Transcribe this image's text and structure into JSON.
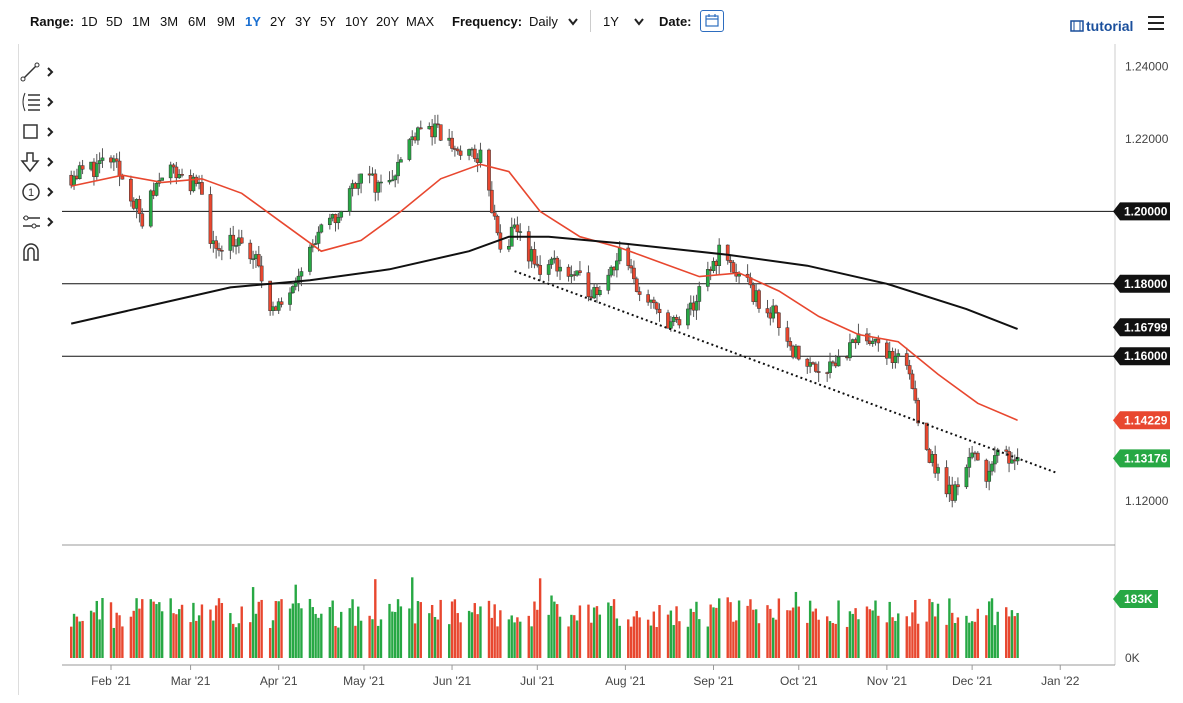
{
  "toolbar": {
    "range_label": "Range:",
    "ranges": [
      "1D",
      "5D",
      "1M",
      "3M",
      "6M",
      "9M",
      "1Y",
      "2Y",
      "3Y",
      "5Y",
      "10Y",
      "20Y",
      "MAX"
    ],
    "active_range": "1Y",
    "frequency_label": "Frequency:",
    "frequency_value": "Daily",
    "period_value": "1Y",
    "date_label": "Date:",
    "tutorial_label": "tutorial"
  },
  "chart_data": {
    "type": "candlestick",
    "x_tick_labels": [
      "Feb '21",
      "Mar '21",
      "Apr '21",
      "May '21",
      "Jun '21",
      "Jul '21",
      "Aug '21",
      "Sep '21",
      "Oct '21",
      "Nov '21",
      "Dec '21",
      "Jan '22"
    ],
    "y_tick_labels": [
      "1.24000",
      "1.22000",
      "1.20000",
      "1.18000",
      "1.16000",
      "1.12000"
    ],
    "ylim": [
      1.1153,
      1.2435
    ],
    "price_path": [
      [
        "2021-01-18",
        1.21
      ],
      [
        "2021-02-01",
        1.214
      ],
      [
        "2021-02-08",
        1.205
      ],
      [
        "2021-02-12",
        1.197
      ],
      [
        "2021-02-19",
        1.212
      ],
      [
        "2021-02-26",
        1.21
      ],
      [
        "2021-03-05",
        1.205
      ],
      [
        "2021-03-09",
        1.19
      ],
      [
        "2021-03-15",
        1.193
      ],
      [
        "2021-03-24",
        1.186
      ],
      [
        "2021-03-31",
        1.171
      ],
      [
        "2021-04-07",
        1.183
      ],
      [
        "2021-04-15",
        1.193
      ],
      [
        "2021-04-22",
        1.199
      ],
      [
        "2021-04-29",
        1.21
      ],
      [
        "2021-05-07",
        1.207
      ],
      [
        "2021-05-14",
        1.214
      ],
      [
        "2021-05-20",
        1.224
      ],
      [
        "2021-05-28",
        1.221
      ],
      [
        "2021-06-04",
        1.216
      ],
      [
        "2021-06-11",
        1.215
      ],
      [
        "2021-06-15",
        1.201
      ],
      [
        "2021-06-18",
        1.189
      ],
      [
        "2021-06-24",
        1.195
      ],
      [
        "2021-07-01",
        1.184
      ],
      [
        "2021-07-07",
        1.186
      ],
      [
        "2021-07-15",
        1.181
      ],
      [
        "2021-07-21",
        1.178
      ],
      [
        "2021-07-30",
        1.188
      ],
      [
        "2021-08-09",
        1.174
      ],
      [
        "2021-08-20",
        1.168
      ],
      [
        "2021-08-27",
        1.177
      ],
      [
        "2021-09-03",
        1.189
      ],
      [
        "2021-09-09",
        1.183
      ],
      [
        "2021-09-17",
        1.175
      ],
      [
        "2021-09-24",
        1.17
      ],
      [
        "2021-10-01",
        1.159
      ],
      [
        "2021-10-08",
        1.157
      ],
      [
        "2021-10-15",
        1.159
      ],
      [
        "2021-10-22",
        1.164
      ],
      [
        "2021-10-28",
        1.166
      ],
      [
        "2021-11-03",
        1.158
      ],
      [
        "2021-11-08",
        1.158
      ],
      [
        "2021-11-12",
        1.144
      ],
      [
        "2021-11-16",
        1.132
      ],
      [
        "2021-11-24",
        1.121
      ],
      [
        "2021-11-30",
        1.133
      ],
      [
        "2021-12-06",
        1.128
      ],
      [
        "2021-12-10",
        1.132
      ],
      [
        "2021-12-17",
        1.133
      ]
    ],
    "moving_average_short": [
      [
        "2021-01-18",
        1.207
      ],
      [
        "2021-02-05",
        1.21
      ],
      [
        "2021-02-19",
        1.208
      ],
      [
        "2021-03-05",
        1.209
      ],
      [
        "2021-03-19",
        1.205
      ],
      [
        "2021-04-02",
        1.197
      ],
      [
        "2021-04-16",
        1.189
      ],
      [
        "2021-04-30",
        1.192
      ],
      [
        "2021-05-14",
        1.2
      ],
      [
        "2021-05-28",
        1.209
      ],
      [
        "2021-06-11",
        1.213
      ],
      [
        "2021-06-21",
        1.211
      ],
      [
        "2021-07-02",
        1.2
      ],
      [
        "2021-07-16",
        1.193
      ],
      [
        "2021-07-30",
        1.19
      ],
      [
        "2021-08-13",
        1.186
      ],
      [
        "2021-08-27",
        1.182
      ],
      [
        "2021-09-10",
        1.183
      ],
      [
        "2021-09-24",
        1.178
      ],
      [
        "2021-10-08",
        1.171
      ],
      [
        "2021-10-22",
        1.166
      ],
      [
        "2021-11-05",
        1.164
      ],
      [
        "2021-11-19",
        1.155
      ],
      [
        "2021-12-03",
        1.147
      ],
      [
        "2021-12-17",
        1.1423
      ]
    ],
    "moving_average_long": [
      [
        "2021-01-18",
        1.169
      ],
      [
        "2021-02-15",
        1.174
      ],
      [
        "2021-03-15",
        1.179
      ],
      [
        "2021-04-12",
        1.181
      ],
      [
        "2021-05-10",
        1.184
      ],
      [
        "2021-06-07",
        1.189
      ],
      [
        "2021-06-21",
        1.193
      ],
      [
        "2021-07-05",
        1.193
      ],
      [
        "2021-08-02",
        1.191
      ],
      [
        "2021-09-06",
        1.188
      ],
      [
        "2021-10-04",
        1.185
      ],
      [
        "2021-11-01",
        1.18
      ],
      [
        "2021-11-29",
        1.173
      ],
      [
        "2021-12-17",
        1.1675
      ]
    ],
    "horizontal_levels": [
      1.2,
      1.18,
      1.16
    ],
    "trendline": {
      "start": [
        "2021-06-23",
        1.1835
      ],
      "end": [
        "2021-12-31",
        1.1277
      ],
      "style": "dotted"
    },
    "price_labels": [
      {
        "value": 1.2,
        "text": "1.20000",
        "color": "#111111"
      },
      {
        "value": 1.18,
        "text": "1.18000",
        "color": "#111111"
      },
      {
        "value": 1.16799,
        "text": "1.16799",
        "color": "#111111"
      },
      {
        "value": 1.16,
        "text": "1.16000",
        "color": "#111111"
      },
      {
        "value": 1.14229,
        "text": "1.14229",
        "color": "#e8472f"
      },
      {
        "value": 1.13176,
        "text": "1.13176",
        "color": "#27a844"
      }
    ],
    "volume": {
      "last_label": "183K",
      "axis_zero_label": "0K"
    },
    "colors": {
      "up": "#27a844",
      "down": "#e8472f",
      "ma_short": "#e8472f",
      "ma_long": "#111111",
      "level": "#111111"
    }
  }
}
